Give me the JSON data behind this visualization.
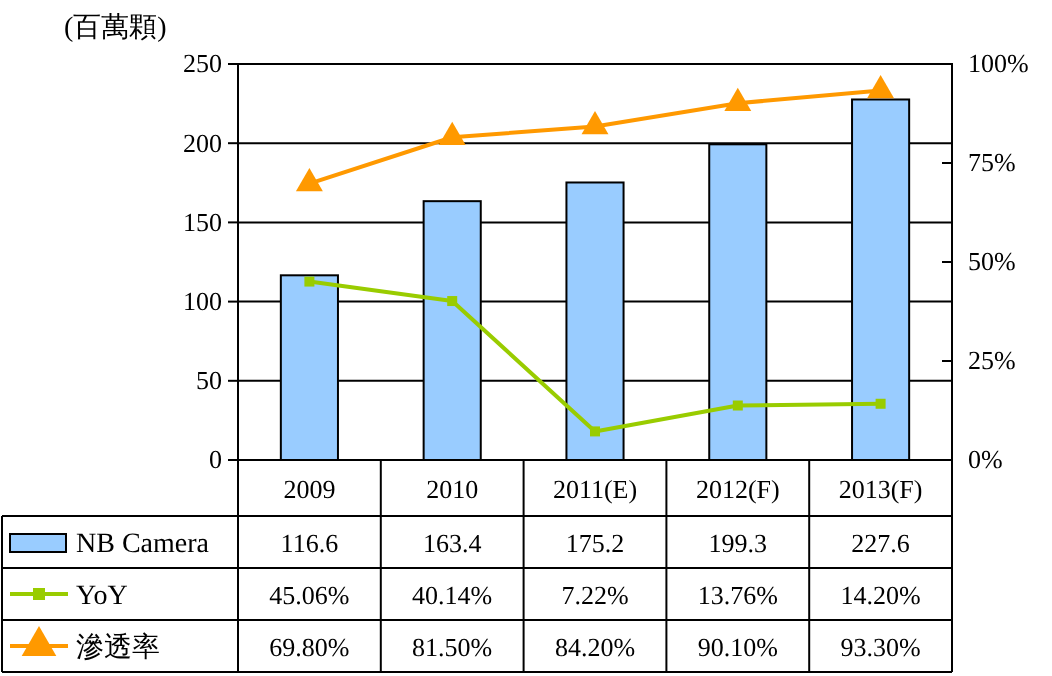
{
  "chart_data": {
    "type": "bar",
    "ylabel": "(百萬顆)",
    "categories": [
      "2009",
      "2010",
      "2011(E)",
      "2012(F)",
      "2013(F)"
    ],
    "series": [
      {
        "name": "NB Camera",
        "color": "#99ccff",
        "values": [
          116.6,
          163.4,
          175.2,
          199.3,
          227.6
        ],
        "value_labels": [
          "116.6",
          "163.4",
          "175.2",
          "199.3",
          "227.6"
        ]
      },
      {
        "name": "YoY",
        "type": "line",
        "axis": "y2",
        "marker": "square",
        "color": "#99cc00",
        "values": [
          45.06,
          40.14,
          7.22,
          13.76,
          14.2
        ],
        "value_labels": [
          "45.06%",
          "40.14%",
          "7.22%",
          "13.76%",
          "14.20%"
        ]
      },
      {
        "name": "滲透率",
        "type": "line",
        "axis": "y2",
        "marker": "triangle",
        "color": "#ff9900",
        "values": [
          69.8,
          81.5,
          84.2,
          90.1,
          93.3
        ],
        "value_labels": [
          "69.80%",
          "81.50%",
          "84.20%",
          "90.10%",
          "93.30%"
        ]
      }
    ],
    "ylim": [
      0,
      250
    ],
    "yticks": [
      0,
      50,
      100,
      150,
      200,
      250
    ],
    "y2lim": [
      0,
      100
    ],
    "y2ticks": [
      {
        "value": 0,
        "label": "0%"
      },
      {
        "value": 25,
        "label": "25%"
      },
      {
        "value": 50,
        "label": "50%"
      },
      {
        "value": 75,
        "label": "75%"
      },
      {
        "value": 100,
        "label": "100%"
      }
    ],
    "grid": "y",
    "legend": "bottom"
  }
}
